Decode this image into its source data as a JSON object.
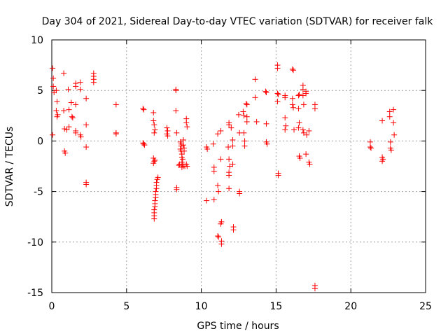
{
  "chart_data": {
    "type": "scatter",
    "title": "Day 304 of 2021, Sidereal Day-to-day VTEC variation (SDTVAR) for receiver falk",
    "xlabel": "GPS time / hours",
    "ylabel": "SDTVAR / TECUs",
    "xlim": [
      0,
      25
    ],
    "ylim": [
      -15,
      10
    ],
    "xticks": [
      0,
      5,
      10,
      15,
      20,
      25
    ],
    "yticks": [
      -15,
      -10,
      -5,
      0,
      5,
      10
    ],
    "xtick_labels": [
      "0",
      "5",
      "10",
      "15",
      "20",
      "25"
    ],
    "ytick_labels": [
      "-15",
      "-10",
      "-5",
      "0",
      "5",
      "10"
    ],
    "grid": true,
    "marker": "plus",
    "series": [
      {
        "name": "SDTVAR",
        "color": "#ff0000",
        "points": [
          [
            0.05,
            7.2
          ],
          [
            0.1,
            6.2
          ],
          [
            0.1,
            5.4
          ],
          [
            0.15,
            4.8
          ],
          [
            0.05,
            0.6
          ],
          [
            0.3,
            5.0
          ],
          [
            0.35,
            3.9
          ],
          [
            0.3,
            3.0
          ],
          [
            0.35,
            2.4
          ],
          [
            0.4,
            2.6
          ],
          [
            0.8,
            6.7
          ],
          [
            0.8,
            3.0
          ],
          [
            0.85,
            1.2
          ],
          [
            0.85,
            -1.0
          ],
          [
            0.9,
            -1.2
          ],
          [
            1.0,
            1.1
          ],
          [
            1.1,
            5.1
          ],
          [
            1.15,
            3.1
          ],
          [
            1.15,
            1.4
          ],
          [
            1.3,
            3.8
          ],
          [
            1.35,
            2.4
          ],
          [
            1.4,
            2.3
          ],
          [
            1.6,
            5.7
          ],
          [
            1.6,
            5.4
          ],
          [
            1.6,
            3.6
          ],
          [
            1.6,
            1.0
          ],
          [
            1.6,
            0.8
          ],
          [
            1.9,
            5.8
          ],
          [
            1.9,
            5.1
          ],
          [
            1.9,
            0.6
          ],
          [
            1.95,
            0.4
          ],
          [
            2.3,
            4.2
          ],
          [
            2.3,
            1.6
          ],
          [
            2.3,
            -0.6
          ],
          [
            2.3,
            -4.1
          ],
          [
            2.3,
            -4.3
          ],
          [
            2.8,
            6.7
          ],
          [
            2.8,
            6.4
          ],
          [
            2.8,
            6.1
          ],
          [
            2.8,
            5.8
          ],
          [
            4.3,
            3.6
          ],
          [
            4.3,
            0.8
          ],
          [
            4.3,
            0.7
          ],
          [
            6.1,
            3.2
          ],
          [
            6.15,
            3.1
          ],
          [
            6.1,
            -0.2
          ],
          [
            6.15,
            -0.3
          ],
          [
            6.2,
            -0.4
          ],
          [
            6.8,
            2.8
          ],
          [
            6.8,
            2.0
          ],
          [
            6.85,
            1.6
          ],
          [
            6.9,
            1.1
          ],
          [
            6.85,
            0.8
          ],
          [
            6.8,
            -1.7
          ],
          [
            6.85,
            -2.0
          ],
          [
            6.8,
            -2.2
          ],
          [
            6.85,
            -7.7
          ],
          [
            6.85,
            -7.4
          ],
          [
            6.85,
            -7.1
          ],
          [
            6.85,
            -6.8
          ],
          [
            6.9,
            -6.5
          ],
          [
            6.9,
            -6.2
          ],
          [
            6.9,
            -5.9
          ],
          [
            6.95,
            -5.6
          ],
          [
            6.95,
            -5.3
          ],
          [
            6.95,
            -5.0
          ],
          [
            7.0,
            -4.7
          ],
          [
            7.0,
            -4.4
          ],
          [
            7.0,
            -4.1
          ],
          [
            7.05,
            -3.8
          ],
          [
            7.1,
            -3.6
          ],
          [
            6.9,
            -1.9
          ],
          [
            7.7,
            1.3
          ],
          [
            7.75,
            1.0
          ],
          [
            7.7,
            0.7
          ],
          [
            7.75,
            0.5
          ],
          [
            8.3,
            5.1
          ],
          [
            8.3,
            5.0
          ],
          [
            8.3,
            3.0
          ],
          [
            8.35,
            0.8
          ],
          [
            8.35,
            -4.6
          ],
          [
            8.35,
            -4.8
          ],
          [
            8.5,
            -2.4
          ],
          [
            8.55,
            -2.3
          ],
          [
            8.6,
            -0.1
          ],
          [
            8.65,
            -0.3
          ],
          [
            8.65,
            -0.5
          ],
          [
            8.6,
            -0.8
          ],
          [
            8.65,
            -1.0
          ],
          [
            8.7,
            -1.3
          ],
          [
            8.7,
            -1.6
          ],
          [
            8.75,
            -1.8
          ],
          [
            8.7,
            -2.1
          ],
          [
            8.75,
            -2.3
          ],
          [
            8.8,
            -2.5
          ],
          [
            8.8,
            0.1
          ],
          [
            8.8,
            -0.4
          ],
          [
            8.85,
            -0.7
          ],
          [
            8.85,
            -1.0
          ],
          [
            8.7,
            -2.6
          ],
          [
            8.9,
            -2.5
          ],
          [
            9.0,
            2.2
          ],
          [
            9.0,
            1.8
          ],
          [
            9.05,
            1.4
          ],
          [
            9.0,
            -2.3
          ],
          [
            9.05,
            -2.5
          ],
          [
            10.35,
            -0.6
          ],
          [
            10.4,
            -0.8
          ],
          [
            10.35,
            -5.9
          ],
          [
            10.8,
            -0.3
          ],
          [
            10.85,
            -2.6
          ],
          [
            10.85,
            -3.0
          ],
          [
            10.85,
            -5.8
          ],
          [
            11.1,
            0.7
          ],
          [
            11.1,
            -4.4
          ],
          [
            11.15,
            -5.0
          ],
          [
            11.1,
            -9.4
          ],
          [
            11.15,
            -9.5
          ],
          [
            11.3,
            1.0
          ],
          [
            11.3,
            -1.8
          ],
          [
            11.35,
            -8.0
          ],
          [
            11.3,
            -8.2
          ],
          [
            11.35,
            -9.9
          ],
          [
            11.35,
            -10.2
          ],
          [
            11.8,
            -0.6
          ],
          [
            11.85,
            1.8
          ],
          [
            11.85,
            1.6
          ],
          [
            11.85,
            -1.8
          ],
          [
            11.9,
            -2.5
          ],
          [
            11.85,
            -3.1
          ],
          [
            11.85,
            -3.4
          ],
          [
            11.85,
            -4.7
          ],
          [
            12.0,
            1.3
          ],
          [
            12.1,
            -0.5
          ],
          [
            12.1,
            -2.3
          ],
          [
            12.1,
            0.1
          ],
          [
            12.15,
            -8.5
          ],
          [
            12.15,
            -8.8
          ],
          [
            12.5,
            2.6
          ],
          [
            12.55,
            0.8
          ],
          [
            12.55,
            -5.0
          ],
          [
            12.55,
            -5.2
          ],
          [
            12.8,
            2.9
          ],
          [
            12.85,
            2.5
          ],
          [
            12.85,
            0.8
          ],
          [
            12.9,
            0.0
          ],
          [
            12.9,
            -0.5
          ],
          [
            13.0,
            3.7
          ],
          [
            13.05,
            3.6
          ],
          [
            13.05,
            2.4
          ],
          [
            13.05,
            1.9
          ],
          [
            13.6,
            6.1
          ],
          [
            13.6,
            4.3
          ],
          [
            13.7,
            1.9
          ],
          [
            14.3,
            4.9
          ],
          [
            14.35,
            4.8
          ],
          [
            14.35,
            1.7
          ],
          [
            14.35,
            -0.1
          ],
          [
            14.4,
            -0.3
          ],
          [
            15.1,
            7.5
          ],
          [
            15.1,
            7.2
          ],
          [
            15.1,
            4.7
          ],
          [
            15.15,
            4.6
          ],
          [
            15.1,
            3.9
          ],
          [
            15.15,
            -3.2
          ],
          [
            15.15,
            -3.4
          ],
          [
            15.6,
            4.5
          ],
          [
            15.6,
            4.3
          ],
          [
            15.6,
            2.3
          ],
          [
            15.65,
            1.5
          ],
          [
            15.6,
            1.1
          ],
          [
            16.1,
            7.1
          ],
          [
            16.15,
            7.0
          ],
          [
            16.1,
            4.2
          ],
          [
            16.1,
            3.6
          ],
          [
            16.15,
            3.3
          ],
          [
            16.2,
            1.1
          ],
          [
            16.5,
            4.5
          ],
          [
            16.55,
            4.6
          ],
          [
            16.5,
            3.2
          ],
          [
            16.55,
            1.8
          ],
          [
            16.5,
            1.3
          ],
          [
            16.55,
            -1.5
          ],
          [
            16.6,
            -1.7
          ],
          [
            16.8,
            5.5
          ],
          [
            16.8,
            5.1
          ],
          [
            16.8,
            4.5
          ],
          [
            16.85,
            3.6
          ],
          [
            16.8,
            1.1
          ],
          [
            16.85,
            0.8
          ],
          [
            17.0,
            4.9
          ],
          [
            17.0,
            4.7
          ],
          [
            17.05,
            0.6
          ],
          [
            17.0,
            -1.3
          ],
          [
            17.2,
            1.0
          ],
          [
            17.2,
            -2.1
          ],
          [
            17.25,
            -2.3
          ],
          [
            17.6,
            3.6
          ],
          [
            17.6,
            3.2
          ],
          [
            17.6,
            -14.3
          ],
          [
            17.6,
            -14.6
          ],
          [
            21.3,
            -0.1
          ],
          [
            21.3,
            -0.6
          ],
          [
            21.35,
            -0.7
          ],
          [
            22.1,
            2.0
          ],
          [
            22.1,
            -1.6
          ],
          [
            22.15,
            -1.8
          ],
          [
            22.1,
            -2.0
          ],
          [
            22.6,
            2.9
          ],
          [
            22.6,
            2.4
          ],
          [
            22.65,
            -0.1
          ],
          [
            22.65,
            -0.7
          ],
          [
            22.7,
            -0.9
          ],
          [
            22.85,
            3.1
          ],
          [
            22.85,
            1.8
          ],
          [
            22.9,
            0.6
          ]
        ]
      }
    ]
  }
}
